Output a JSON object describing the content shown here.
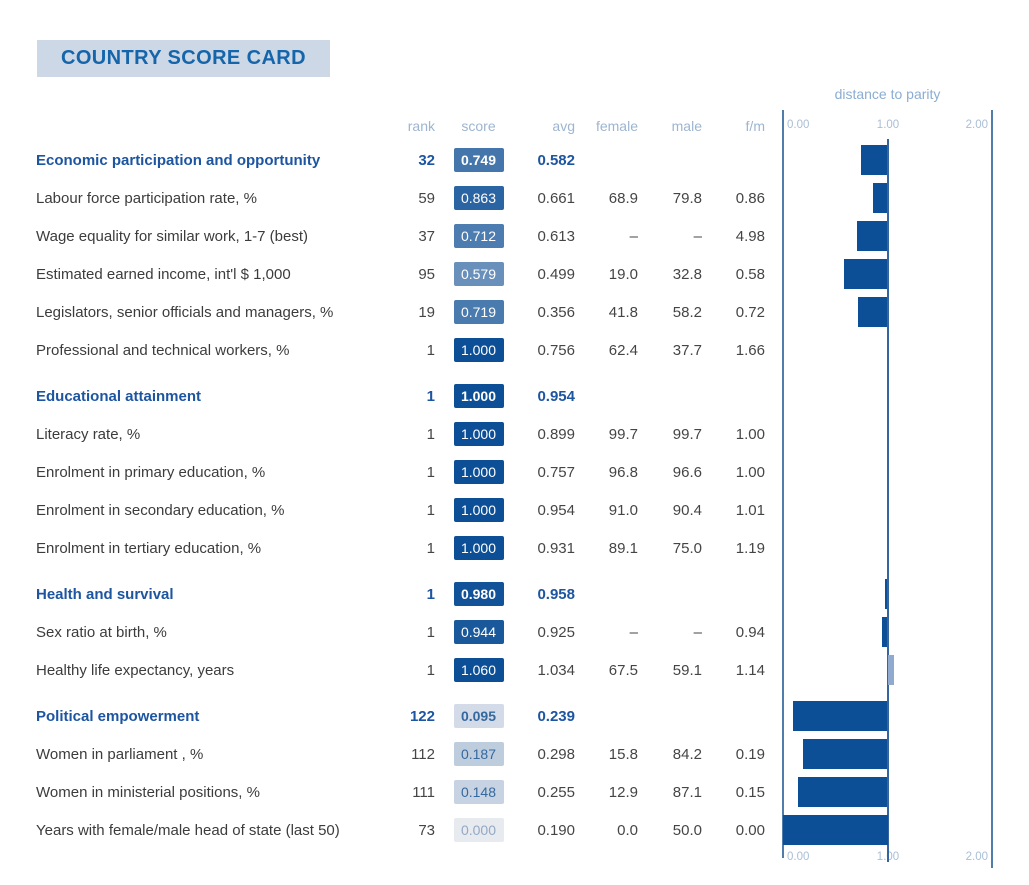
{
  "title": "COUNTRY SCORE CARD",
  "columns": {
    "rank": "rank",
    "score": "score",
    "avg": "avg",
    "female": "female",
    "male": "male",
    "fm": "f/m"
  },
  "chart": {
    "title": "distance to parity",
    "ticks_top": [
      "0.00",
      "1.00",
      "2.00"
    ],
    "ticks_bottom": [
      "0.00",
      "1.00",
      "2.00"
    ]
  },
  "colors": {
    "bar": "#0d4f96",
    "bar_over_parity": "#8fa9cf",
    "axis_line": "#527dab",
    "axis_line_parity": "#35659e",
    "chip_scale_low": [
      231,
      234,
      239
    ],
    "chip_scale_high": [
      13,
      79,
      150
    ],
    "chip_text_light": "#ffffff",
    "chip_text_blue": "#35689f",
    "chip_text_faint": "#93a9c5",
    "section_text": "#1d55a1",
    "row_text": "#3c3c3c",
    "number_text": "#454545",
    "header_text": "#9db5d1",
    "tick_text": "#a9bed6",
    "chart_title_text": "#8badd3",
    "title_text": "#1565ab",
    "title_bg": "#cdd8e6"
  },
  "sections": [
    {
      "header": {
        "label": "Economic participation and opportunity",
        "rank": "32",
        "score": "0.749",
        "avg": "0.582",
        "female": "",
        "male": "",
        "fm": ""
      },
      "rows": [
        {
          "label": "Labour force participation rate, %",
          "rank": "59",
          "score": "0.863",
          "avg": "0.661",
          "female": "68.9",
          "male": "79.8",
          "fm": "0.86"
        },
        {
          "label": "Wage equality for similar work, 1-7 (best)",
          "rank": "37",
          "score": "0.712",
          "avg": "0.613",
          "female": "–",
          "male": "–",
          "fm": "4.98"
        },
        {
          "label": "Estimated earned income, int'l $ 1,000",
          "rank": "95",
          "score": "0.579",
          "avg": "0.499",
          "female": "19.0",
          "male": "32.8",
          "fm": "0.58"
        },
        {
          "label": "Legislators, senior officials and managers, %",
          "rank": "19",
          "score": "0.719",
          "avg": "0.356",
          "female": "41.8",
          "male": "58.2",
          "fm": "0.72"
        },
        {
          "label": "Professional and technical workers, %",
          "rank": "1",
          "score": "1.000",
          "avg": "0.756",
          "female": "62.4",
          "male": "37.7",
          "fm": "1.66"
        }
      ]
    },
    {
      "header": {
        "label": "Educational attainment",
        "rank": "1",
        "score": "1.000",
        "avg": "0.954",
        "female": "",
        "male": "",
        "fm": ""
      },
      "rows": [
        {
          "label": "Literacy rate, %",
          "rank": "1",
          "score": "1.000",
          "avg": "0.899",
          "female": "99.7",
          "male": "99.7",
          "fm": "1.00"
        },
        {
          "label": "Enrolment in primary education, %",
          "rank": "1",
          "score": "1.000",
          "avg": "0.757",
          "female": "96.8",
          "male": "96.6",
          "fm": "1.00"
        },
        {
          "label": "Enrolment in secondary education, %",
          "rank": "1",
          "score": "1.000",
          "avg": "0.954",
          "female": "91.0",
          "male": "90.4",
          "fm": "1.01"
        },
        {
          "label": "Enrolment in tertiary education, %",
          "rank": "1",
          "score": "1.000",
          "avg": "0.931",
          "female": "89.1",
          "male": "75.0",
          "fm": "1.19"
        }
      ]
    },
    {
      "header": {
        "label": "Health and survival",
        "rank": "1",
        "score": "0.980",
        "avg": "0.958",
        "female": "",
        "male": "",
        "fm": ""
      },
      "rows": [
        {
          "label": "Sex ratio at birth, %",
          "rank": "1",
          "score": "0.944",
          "avg": "0.925",
          "female": "–",
          "male": "–",
          "fm": "0.94"
        },
        {
          "label": "Healthy life expectancy, years",
          "rank": "1",
          "score": "1.060",
          "avg": "1.034",
          "female": "67.5",
          "male": "59.1",
          "fm": "1.14"
        }
      ]
    },
    {
      "header": {
        "label": "Political empowerment",
        "rank": "122",
        "score": "0.095",
        "avg": "0.239",
        "female": "",
        "male": "",
        "fm": ""
      },
      "rows": [
        {
          "label": "Women in parliament , %",
          "rank": "112",
          "score": "0.187",
          "avg": "0.298",
          "female": "15.8",
          "male": "84.2",
          "fm": "0.19"
        },
        {
          "label": "Women in ministerial positions, %",
          "rank": "111",
          "score": "0.148",
          "avg": "0.255",
          "female": "12.9",
          "male": "87.1",
          "fm": "0.15"
        },
        {
          "label": "Years with female/male head of state (last 50)",
          "rank": "73",
          "score": "0.000",
          "avg": "0.190",
          "female": "0.0",
          "male": "50.0",
          "fm": "0.00"
        }
      ]
    }
  ],
  "chart_data": {
    "type": "bar",
    "orientation": "horizontal",
    "title": "distance to parity",
    "xlim": [
      0,
      2
    ],
    "xticks": [
      0.0,
      1.0,
      2.0
    ],
    "parity_line": 1.0,
    "bar_rule": "each bar spans from the score value to the parity line at 1.00; scores above 1.00 extend right of the line in a lighter blue",
    "categories": [
      "Economic participation and opportunity",
      "Labour force participation rate, %",
      "Wage equality for similar work, 1-7 (best)",
      "Estimated earned income, int'l $ 1,000",
      "Legislators, senior officials and managers, %",
      "Professional and technical workers, %",
      "Educational attainment",
      "Literacy rate, %",
      "Enrolment in primary education, %",
      "Enrolment in secondary education, %",
      "Enrolment in tertiary education, %",
      "Health and survival",
      "Sex ratio at birth, %",
      "Healthy life expectancy, years",
      "Political empowerment",
      "Women in parliament , %",
      "Women in ministerial positions, %",
      "Years with female/male head of state (last 50)"
    ],
    "values": [
      0.749,
      0.863,
      0.712,
      0.579,
      0.719,
      1.0,
      1.0,
      1.0,
      1.0,
      1.0,
      1.0,
      0.98,
      0.944,
      1.06,
      0.095,
      0.187,
      0.148,
      0.0
    ]
  }
}
